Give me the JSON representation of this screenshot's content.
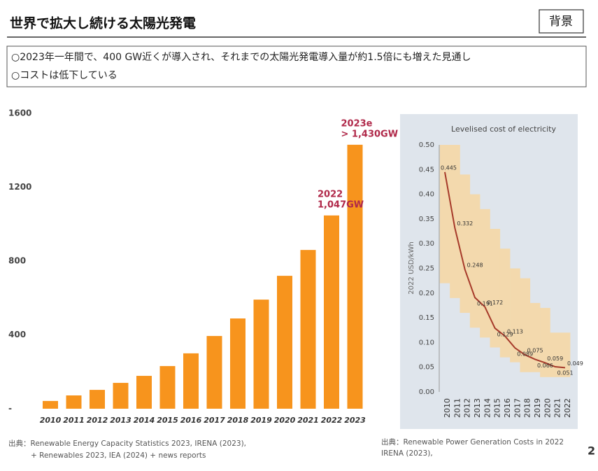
{
  "slide": {
    "title": "世界で拡大し続ける太陽光発電",
    "tag": "背景",
    "bullets": [
      "○2023年一年間で、400 GW近くが導入され、それまでの太陽光発電導入量が約1.5倍にも増えた見通し",
      "○コストは低下している"
    ],
    "sources": [
      [
        "出典：Renewable Energy Capacity Statistics 2023, IRENA (2023),",
        "+ Renewables 2023, IEA (2024) + news reports"
      ],
      [
        "出典：Renewable Power Generation Costs in 2022",
        "IRENA (2023),"
      ]
    ],
    "page_number": "2"
  },
  "chart_data": [
    {
      "type": "bar",
      "categories": [
        "2010",
        "2011",
        "2012",
        "2013",
        "2014",
        "2015",
        "2016",
        "2017",
        "2018",
        "2019",
        "2020",
        "2021",
        "2022",
        "2023"
      ],
      "values": [
        42,
        72,
        102,
        140,
        178,
        231,
        300,
        394,
        489,
        591,
        720,
        860,
        1047,
        1430
      ],
      "color": "#f7941d",
      "ylim": [
        0,
        1600
      ],
      "yticks": [
        {
          "value": 0,
          "label": "-"
        },
        400,
        800,
        1200,
        1600
      ],
      "annotations": [
        {
          "category": 12,
          "lines": [
            "2022",
            "1,047GW"
          ]
        },
        {
          "category": 13,
          "lines": [
            "2023e",
            "> 1,430GW"
          ]
        }
      ],
      "annotation_color": "#b0294a"
    },
    {
      "type": "line",
      "title": "Levelised cost of electricity",
      "y_label": "2022 USD/kWh",
      "categories": [
        "2010",
        "2011",
        "2012",
        "2013",
        "2014",
        "2015",
        "2016",
        "2017",
        "2018",
        "2019",
        "2020",
        "2021",
        "2022"
      ],
      "values": [
        0.445,
        0.332,
        0.248,
        0.191,
        0.172,
        0.129,
        0.113,
        0.089,
        0.075,
        0.066,
        0.059,
        0.051,
        0.049
      ],
      "color": "#a63a2a",
      "band": {
        "color": "#f3d9ad",
        "high": [
          0.5,
          0.5,
          0.44,
          0.4,
          0.37,
          0.33,
          0.29,
          0.25,
          0.23,
          0.18,
          0.17,
          0.12,
          0.12
        ],
        "low": [
          0.22,
          0.19,
          0.16,
          0.13,
          0.11,
          0.09,
          0.07,
          0.06,
          0.04,
          0.04,
          0.03,
          0.03,
          0.03
        ]
      },
      "ylim": [
        0,
        0.5
      ],
      "yticks": [
        {
          "value": 0,
          "label": "0.00"
        },
        0.05,
        {
          "value": 0.1,
          "label": "0.10"
        },
        0.15,
        {
          "value": 0.2,
          "label": "0.20"
        },
        0.25,
        {
          "value": 0.3,
          "label": "0.30"
        },
        0.35,
        {
          "value": 0.4,
          "label": "0.40"
        },
        0.45,
        {
          "value": 0.5,
          "label": "0.50"
        }
      ]
    }
  ]
}
